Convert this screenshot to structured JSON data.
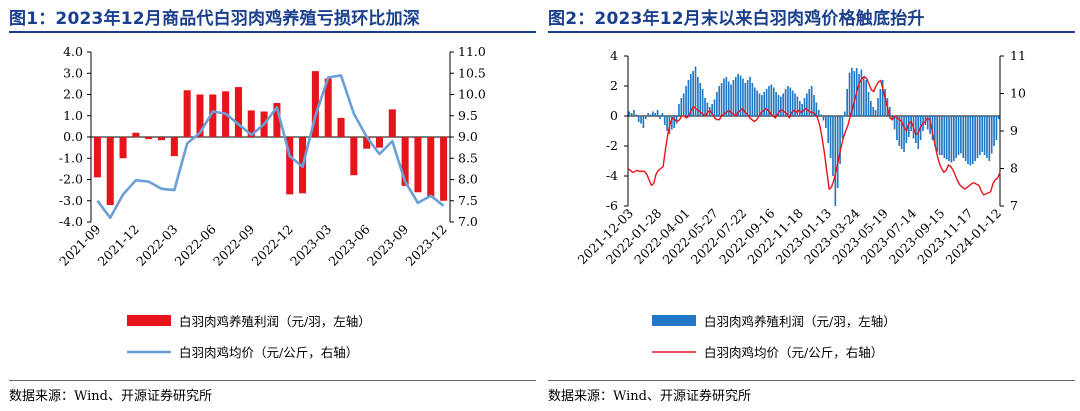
{
  "charts": [
    {
      "title": "图1：2023年12月商品代白羽肉鸡养殖亏损环比加深",
      "source": "数据来源：Wind、开源证券研究所"
    },
    {
      "title": "图2：2023年12月末以来白羽肉鸡价格触底抬升",
      "source": "数据来源：Wind、开源证券研究所"
    }
  ],
  "chart_data": [
    {
      "type": "bar+line",
      "categories": [
        "2021-09",
        "2021-10",
        "2021-11",
        "2021-12",
        "2022-01",
        "2022-02",
        "2022-03",
        "2022-04",
        "2022-05",
        "2022-06",
        "2022-07",
        "2022-08",
        "2022-09",
        "2022-10",
        "2022-11",
        "2022-12",
        "2023-01",
        "2023-02",
        "2023-03",
        "2023-04",
        "2023-05",
        "2023-06",
        "2023-07",
        "2023-08",
        "2023-09",
        "2023-10",
        "2023-11",
        "2023-12"
      ],
      "x_tick_labels": [
        "2021-09",
        "2021-12",
        "2022-03",
        "2022-06",
        "2022-09",
        "2022-12",
        "2023-03",
        "2023-06",
        "2023-09",
        "2023-12"
      ],
      "series": [
        {
          "name": "白羽肉鸡养殖利润（元/羽，左轴）",
          "axis": "left",
          "kind": "bar",
          "color": "#e8141b",
          "values": [
            -1.9,
            -3.2,
            -1.0,
            0.2,
            -0.1,
            -0.15,
            -0.9,
            2.2,
            2.0,
            2.0,
            2.15,
            2.35,
            1.25,
            1.2,
            1.6,
            -2.7,
            -2.65,
            3.1,
            2.75,
            0.9,
            -1.8,
            -0.55,
            -0.5,
            1.3,
            -2.3,
            -2.6,
            -2.8,
            -3.0
          ]
        },
        {
          "name": "白羽肉鸡均价（元/公斤，右轴）",
          "axis": "right",
          "kind": "line",
          "color": "#6aa0d8",
          "values": [
            7.5,
            7.1,
            7.65,
            7.98,
            7.95,
            7.78,
            7.75,
            8.85,
            9.1,
            9.6,
            9.55,
            9.3,
            9.05,
            9.3,
            9.7,
            8.55,
            8.3,
            9.5,
            10.4,
            10.45,
            9.55,
            9.0,
            8.6,
            8.9,
            7.95,
            7.45,
            7.62,
            7.38
          ]
        }
      ],
      "y_left": {
        "min": -4.0,
        "max": 4.0,
        "ticks": [
          "4.0",
          "3.0",
          "2.0",
          "1.0",
          "0.0",
          "-1.0",
          "-2.0",
          "-3.0",
          "-4.0"
        ]
      },
      "y_right": {
        "min": 7.0,
        "max": 11.0,
        "ticks": [
          "11.0",
          "10.5",
          "10.0",
          "9.5",
          "9.0",
          "8.5",
          "8.0",
          "7.5",
          "7.0"
        ]
      }
    },
    {
      "type": "bar+line",
      "x_tick_labels": [
        "2021-12-03",
        "2022-01-28",
        "2022-04-01",
        "2022-05-27",
        "2022-07-22",
        "2022-09-16",
        "2022-11-18",
        "2023-01-13",
        "2023-03-24",
        "2023-05-19",
        "2023-07-14",
        "2023-09-15",
        "2023-11-17",
        "2024-01-12"
      ],
      "series": [
        {
          "name": "白羽肉鸡养殖利润（元/羽，左轴）",
          "axis": "left",
          "kind": "bar",
          "color": "#2277c4",
          "values": [
            0.3,
            0.2,
            0.4,
            0.1,
            -0.4,
            -0.5,
            -0.8,
            -0.2,
            0.2,
            0.1,
            0.3,
            0.2,
            0.4,
            -0.2,
            0.2,
            -0.6,
            -1.0,
            -1.2,
            -0.9,
            -0.8,
            -0.5,
            0.8,
            1.2,
            1.5,
            2.0,
            2.4,
            2.8,
            3.0,
            3.3,
            2.6,
            2.2,
            1.8,
            1.2,
            0.9,
            0.6,
            0.8,
            1.1,
            1.6,
            2.0,
            2.2,
            2.5,
            2.6,
            2.3,
            2.1,
            2.4,
            2.6,
            2.8,
            2.7,
            2.5,
            2.2,
            2.4,
            2.6,
            2.2,
            1.9,
            1.7,
            1.5,
            1.4,
            1.6,
            1.8,
            2.0,
            2.1,
            1.9,
            1.6,
            1.4,
            1.3,
            1.5,
            1.8,
            2.0,
            1.9,
            1.7,
            1.5,
            1.3,
            1.0,
            0.8,
            1.2,
            1.5,
            1.8,
            2.0,
            1.4,
            0.9,
            0.4,
            0.1,
            -0.3,
            -0.8,
            -1.8,
            -2.8,
            -4.0,
            -6.0,
            -4.8,
            -3.2,
            -1.5,
            0.3,
            1.8,
            2.9,
            3.2,
            3.0,
            3.2,
            2.8,
            3.1,
            2.6,
            2.4,
            1.6,
            1.0,
            0.6,
            0.4,
            1.2,
            1.8,
            2.4,
            1.8,
            1.2,
            0.6,
            -0.3,
            -0.9,
            -1.6,
            -2.0,
            -2.2,
            -2.4,
            -1.8,
            -1.4,
            -1.0,
            -1.5,
            -1.8,
            -2.2,
            -1.6,
            -1.0,
            -0.6,
            -0.9,
            -1.2,
            -1.6,
            -2.0,
            -2.4,
            -2.6,
            -2.6,
            -2.8,
            -2.9,
            -3.0,
            -3.1,
            -3.0,
            -2.8,
            -2.6,
            -2.5,
            -2.8,
            -3.0,
            -3.2,
            -3.3,
            -3.2,
            -3.0,
            -2.8,
            -2.6,
            -2.4,
            -2.6,
            -2.8,
            -3.0,
            -2.5,
            -2.0,
            -1.6,
            -0.2
          ]
        },
        {
          "name": "白羽肉鸡均价（元/公斤，右轴）",
          "axis": "right",
          "kind": "line",
          "color": "#e8141b",
          "values": [
            8.0,
            7.95,
            7.9,
            7.92,
            7.95,
            7.92,
            7.93,
            7.92,
            7.85,
            7.7,
            7.55,
            7.6,
            7.85,
            7.95,
            8.0,
            8.05,
            8.5,
            8.9,
            9.2,
            9.35,
            9.3,
            9.25,
            9.3,
            9.4,
            9.4,
            9.35,
            9.4,
            9.55,
            9.65,
            9.6,
            9.55,
            9.5,
            9.45,
            9.4,
            9.5,
            9.55,
            9.45,
            9.35,
            9.3,
            9.3,
            9.4,
            9.45,
            9.5,
            9.55,
            9.5,
            9.45,
            9.4,
            9.5,
            9.55,
            9.6,
            9.5,
            9.45,
            9.35,
            9.3,
            9.25,
            9.3,
            9.4,
            9.5,
            9.55,
            9.6,
            9.55,
            9.45,
            9.4,
            9.35,
            9.45,
            9.55,
            9.55,
            9.5,
            9.45,
            9.35,
            9.5,
            9.55,
            9.5,
            9.55,
            9.5,
            9.55,
            9.6,
            9.55,
            9.5,
            9.5,
            9.45,
            9.35,
            9.15,
            8.8,
            8.4,
            7.9,
            7.45,
            7.5,
            7.7,
            7.95,
            8.25,
            8.55,
            8.8,
            9.0,
            9.15,
            9.4,
            9.6,
            9.85,
            10.1,
            10.3,
            10.4,
            10.45,
            10.4,
            10.25,
            10.1,
            10.05,
            10.2,
            10.3,
            10.35,
            10.1,
            9.85,
            9.6,
            9.35,
            9.3,
            9.4,
            9.35,
            9.3,
            9.25,
            9.1,
            9.0,
            9.2,
            9.25,
            9.1,
            8.9,
            8.95,
            9.1,
            9.2,
            9.25,
            9.35,
            9.3,
            9.0,
            8.7,
            8.4,
            8.15,
            8.0,
            7.9,
            7.95,
            8.1,
            8.05,
            7.95,
            7.8,
            7.65,
            7.55,
            7.5,
            7.45,
            7.5,
            7.55,
            7.6,
            7.62,
            7.58,
            7.55,
            7.4,
            7.3,
            7.32,
            7.35,
            7.38,
            7.6,
            7.7,
            7.75,
            7.9
          ]
        }
      ],
      "y_left": {
        "min": -6,
        "max": 4,
        "ticks": [
          "4",
          "2",
          "0",
          "-2",
          "-4",
          "-6"
        ]
      },
      "y_right": {
        "min": 7,
        "max": 11,
        "ticks": [
          "11",
          "10",
          "9",
          "8",
          "7"
        ]
      }
    }
  ]
}
